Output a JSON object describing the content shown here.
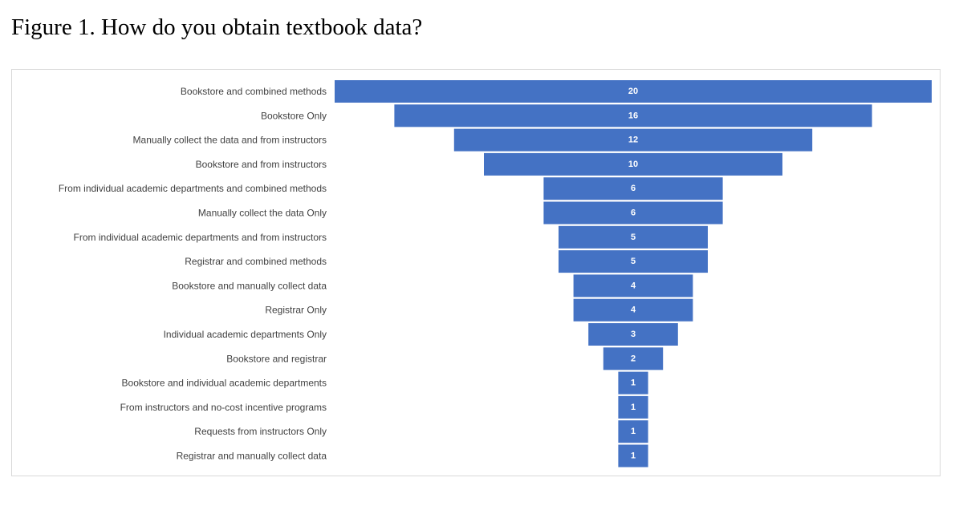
{
  "figure_caption": "Figure 1. How do you obtain textbook data?",
  "colors": {
    "bar": "#4472c4",
    "bar_label": "#ffffff",
    "category_label": "#404040",
    "frame_border": "#d9d9d9"
  },
  "chart_data": {
    "type": "bar",
    "orientation": "horizontal",
    "style": "funnel",
    "title": "",
    "xlabel": "",
    "ylabel": "",
    "grid": false,
    "legend": "none",
    "xlim": [
      0,
      20
    ],
    "data_labels": true,
    "categories": [
      "Bookstore and combined methods",
      "Bookstore Only",
      "Manually collect the data and from instructors",
      "Bookstore and from instructors",
      "From individual academic departments  and combined methods",
      "Manually collect the data Only",
      "From individual academic departments and from instructors",
      "Registrar and combined methods",
      "Bookstore and manually collect data",
      "Registrar Only",
      "Individual academic departments Only",
      "Bookstore and registrar",
      "Bookstore and individual academic departments",
      "From instructors and no-cost incentive programs",
      "Requests from instructors Only",
      "Registrar and manually collect data"
    ],
    "values": [
      20,
      16,
      12,
      10,
      6,
      6,
      5,
      5,
      4,
      4,
      3,
      2,
      1,
      1,
      1,
      1
    ]
  }
}
